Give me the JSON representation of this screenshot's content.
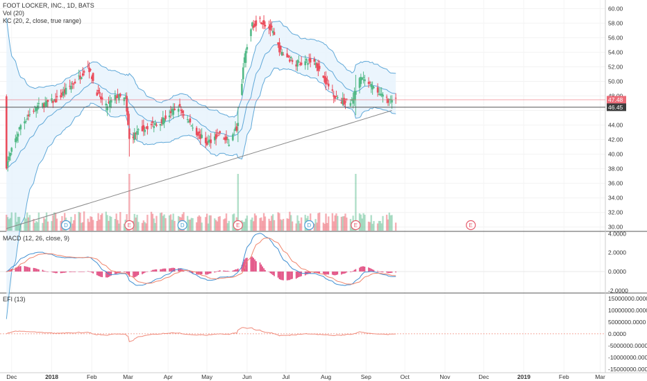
{
  "symbol_title": "FOOT LOCKER, INC., 1D, BATS",
  "indicators": {
    "volume_label": "Vol (20)",
    "keltner_label": "KC (20, 2, close, true range)",
    "macd_label": "MACD (12, 26, close, 9)",
    "efi_label": "EFI (13)"
  },
  "colors": {
    "up_candle": "#53b987",
    "down_candle": "#eb4d5c",
    "channel_line": "#5fa8d8",
    "channel_fill": "#e6f3fc",
    "macd_line": "#3f8fd2",
    "signal_line": "#f0836a",
    "histogram": "#e0457b",
    "efi_line": "#f08a7a",
    "trendline": "#888888",
    "price_badge_red": "#ec6c78",
    "price_badge_dark": "#3d3d3d"
  },
  "chart_data": {
    "type": "candlestick",
    "price_axis": {
      "ylim": [
        29.5,
        60.7
      ],
      "ticks": [
        "60.00",
        "58.00",
        "56.00",
        "54.00",
        "52.00",
        "50.00",
        "48.00",
        "46.00",
        "44.00",
        "42.00",
        "40.00",
        "38.00",
        "36.00",
        "34.00",
        "32.00",
        "30.00"
      ],
      "last_price_label": "47.48",
      "line_price_label": "46.45",
      "last_price": 47.48,
      "line_price": 46.45
    },
    "x_axis_labels": [
      "Dec",
      "2018",
      "Feb",
      "Mar",
      "Apr",
      "May",
      "Jun",
      "Jul",
      "Aug",
      "Sep",
      "Oct",
      "Nov",
      "Dec",
      "2019",
      "Feb",
      "Mar"
    ],
    "close_anchors": [
      [
        "2017-11-27",
        38.5
      ],
      [
        "2017-12-08",
        44.0
      ],
      [
        "2017-12-20",
        46.5
      ],
      [
        "2018-01-05",
        47.5
      ],
      [
        "2018-01-22",
        50.5
      ],
      [
        "2018-01-29",
        52.2
      ],
      [
        "2018-02-05",
        48.5
      ],
      [
        "2018-02-12",
        46.5
      ],
      [
        "2018-02-20",
        48.0
      ],
      [
        "2018-02-27",
        47.5
      ],
      [
        "2018-03-02",
        42.0
      ],
      [
        "2018-03-12",
        43.5
      ],
      [
        "2018-03-26",
        44.5
      ],
      [
        "2018-04-09",
        46.5
      ],
      [
        "2018-04-23",
        43.0
      ],
      [
        "2018-05-01",
        41.5
      ],
      [
        "2018-05-10",
        42.8
      ],
      [
        "2018-05-18",
        41.5
      ],
      [
        "2018-05-25",
        44.0
      ],
      [
        "2018-05-29",
        52.0
      ],
      [
        "2018-06-04",
        57.5
      ],
      [
        "2018-06-11",
        58.5
      ],
      [
        "2018-06-20",
        57.0
      ],
      [
        "2018-06-27",
        54.0
      ],
      [
        "2018-07-09",
        52.5
      ],
      [
        "2018-07-23",
        52.8
      ],
      [
        "2018-08-01",
        50.0
      ],
      [
        "2018-08-10",
        47.5
      ],
      [
        "2018-08-20",
        47.0
      ],
      [
        "2018-08-28",
        50.5
      ],
      [
        "2018-09-04",
        49.5
      ],
      [
        "2018-09-13",
        48.0
      ],
      [
        "2018-09-21",
        47.2
      ],
      [
        "2018-09-24",
        47.48
      ]
    ],
    "volume_spike_dates": [
      "2018-03-02",
      "2018-05-25",
      "2018-08-24"
    ],
    "earnings_marker_dates": [
      "2018-03-02",
      "2018-05-25",
      "2018-08-24",
      "2018-11-21"
    ],
    "dividend_marker_dates": [
      "2018-01-12",
      "2018-04-12",
      "2018-07-19"
    ],
    "earnings_marker_label": "E",
    "dividend_marker_label": "D",
    "trendline": {
      "start": [
        "2017-11-27",
        29.8
      ],
      "end": [
        "2018-09-21",
        46.0
      ]
    },
    "macd_axis": {
      "ylim": [
        -2.2,
        4.1
      ],
      "ticks": [
        "4.0000",
        "2.0000",
        "0.0000",
        "-2.0000"
      ]
    },
    "efi_axis": {
      "ylim": [
        -16500000,
        17000000
      ],
      "ticks": [
        "15000000.0000",
        "10000000.0000",
        "5000000.0000",
        "0.0000",
        "-5000000.0000",
        "-10000000.0000",
        "-15000000.0000"
      ]
    }
  }
}
